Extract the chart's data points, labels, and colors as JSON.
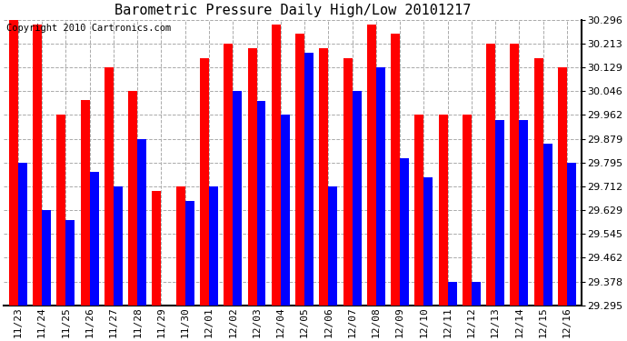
{
  "title": "Barometric Pressure Daily High/Low 20101217",
  "copyright": "Copyright 2010 Cartronics.com",
  "dates": [
    "11/23",
    "11/24",
    "11/25",
    "11/26",
    "11/27",
    "11/28",
    "11/29",
    "11/30",
    "12/01",
    "12/02",
    "12/03",
    "12/04",
    "12/05",
    "12/06",
    "12/07",
    "12/08",
    "12/09",
    "12/10",
    "12/11",
    "12/12",
    "12/13",
    "12/14",
    "12/15",
    "12/16"
  ],
  "highs": [
    30.296,
    30.279,
    29.962,
    30.013,
    30.129,
    30.046,
    29.695,
    29.712,
    30.162,
    30.213,
    30.196,
    30.279,
    30.246,
    30.196,
    30.162,
    30.279,
    30.246,
    29.962,
    29.962,
    29.962,
    30.213,
    30.213,
    30.162,
    30.129
  ],
  "lows": [
    29.795,
    29.629,
    29.595,
    29.762,
    29.712,
    29.879,
    29.295,
    29.662,
    29.712,
    30.046,
    30.012,
    29.962,
    30.179,
    29.712,
    30.046,
    30.129,
    29.812,
    29.745,
    29.378,
    29.378,
    29.945,
    29.945,
    29.862,
    29.795
  ],
  "bar_color_high": "#ff0000",
  "bar_color_low": "#0000ff",
  "bg_color": "#ffffff",
  "grid_color": "#aaaaaa",
  "title_fontsize": 11,
  "copyright_fontsize": 7.5,
  "tick_fontsize": 8,
  "ylim_min": 29.295,
  "ylim_max": 30.296,
  "yticks": [
    29.295,
    29.378,
    29.462,
    29.545,
    29.629,
    29.712,
    29.795,
    29.879,
    29.962,
    30.046,
    30.129,
    30.213,
    30.296
  ]
}
